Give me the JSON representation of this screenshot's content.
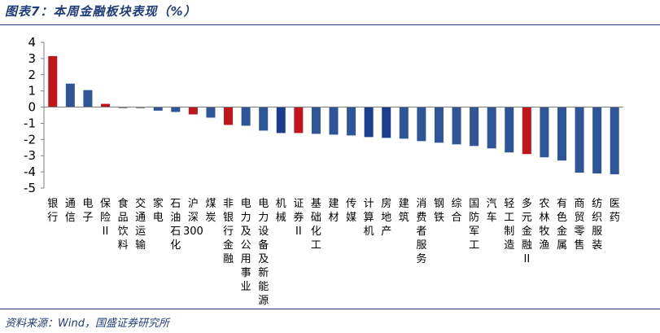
{
  "header": {
    "title": "图表7：本周金融板块表现（%）"
  },
  "footer": {
    "source": "资料来源：Wind，国盛证券研究所"
  },
  "chart_data": {
    "type": "bar",
    "title": "图表7：本周金融板块表现（%）",
    "xlabel": "",
    "ylabel": "",
    "ylim": [
      -5,
      4
    ],
    "yticks": [
      4,
      3,
      2,
      1,
      0,
      -1,
      -2,
      -3,
      -4,
      -5
    ],
    "grid": false,
    "categories": [
      "银行",
      "通信",
      "电子",
      "保险II",
      "食品饮料",
      "交通运输",
      "家电",
      "石油石化",
      "沪深300",
      "煤炭",
      "非银行金融",
      "电力及公用事业",
      "电力设备及新能源",
      "机械",
      "证券II",
      "基础化工",
      "建材",
      "传媒",
      "计算机",
      "房地产",
      "建筑",
      "消费者服务",
      "钢铁",
      "综合",
      "国防军工",
      "汽车",
      "轻工制造",
      "多元金融II",
      "农林牧渔",
      "有色金属",
      "商贸零售",
      "纺织服装",
      "医药"
    ],
    "values": [
      3.15,
      1.45,
      1.05,
      0.2,
      -0.05,
      -0.08,
      -0.22,
      -0.3,
      -0.45,
      -0.65,
      -1.1,
      -1.15,
      -1.45,
      -1.6,
      -1.6,
      -1.65,
      -1.7,
      -1.75,
      -1.85,
      -1.9,
      -1.95,
      -2.1,
      -2.2,
      -2.3,
      -2.4,
      -2.55,
      -2.8,
      -2.9,
      -3.1,
      -3.3,
      -4.05,
      -4.1,
      -4.15
    ],
    "colors": {
      "default": "#2e5597",
      "highlight": "#c0151b",
      "dark": "#1a3d8f"
    },
    "highlight": [
      "银行",
      "保险II",
      "沪深300",
      "非银行金融",
      "证券II",
      "多元金融II"
    ]
  }
}
